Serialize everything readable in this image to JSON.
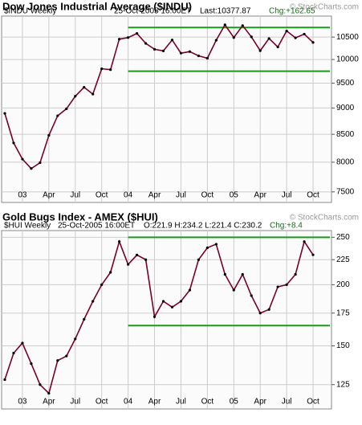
{
  "chart_data": [
    {
      "type": "line",
      "title": "Dow Jones Industrial Average ($INDU)",
      "watermark": "© StockCharts.com",
      "info": [
        "$INDU Weekly",
        "25-Oct-2005 16:00ET",
        "Last:10377.87",
        "Chg:+162.65"
      ],
      "categories": [
        null,
        null,
        "03",
        null,
        null,
        "Apr",
        null,
        null,
        "Jul",
        null,
        null,
        "Oct",
        null,
        null,
        "04",
        null,
        null,
        "Apr",
        null,
        null,
        "Jul",
        null,
        null,
        "Oct",
        null,
        null,
        "05",
        null,
        null,
        "Apr",
        null,
        null,
        "Jul",
        null,
        null,
        "Oct"
      ],
      "values": [
        8896,
        8342,
        8054,
        7891,
        7992,
        8480,
        8850,
        8985,
        9233,
        9415,
        9275,
        9801,
        9782,
        10453,
        10488,
        10583,
        10357,
        10225,
        10188,
        10435,
        10139,
        10173,
        10080,
        10027,
        10428,
        10783,
        10489,
        10766,
        10504,
        10193,
        10467,
        10275,
        10641,
        10482,
        10568,
        10378
      ],
      "color": "#7a0026",
      "log_scale": true,
      "grid": true,
      "ylim": [
        7330,
        10990
      ],
      "yticks": [
        7500,
        8000,
        8500,
        9000,
        9500,
        10000,
        10500
      ],
      "reference_lines": [
        10720,
        9750
      ],
      "reference_color": "#1a9a1a"
    },
    {
      "type": "line",
      "title": "Gold Bugs Index - AMEX ($HUI)",
      "watermark": "© StockCharts.com",
      "info": [
        "$HUI Weekly",
        "25-Oct-2005 16:00ET",
        "O:221.9 H:234.2 L:221.4 C:230.2",
        "Chg:+8.4"
      ],
      "categories": [
        null,
        null,
        "03",
        null,
        null,
        "Apr",
        null,
        null,
        "Jul",
        null,
        null,
        "Oct",
        null,
        null,
        "04",
        null,
        null,
        "Apr",
        null,
        null,
        "Jul",
        null,
        null,
        "Oct",
        null,
        null,
        "05",
        null,
        null,
        "Apr",
        null,
        null,
        "Jul",
        null,
        null,
        "Oct"
      ],
      "values": [
        128,
        145,
        152,
        138,
        125,
        120,
        140,
        143,
        155,
        170,
        185,
        200,
        212,
        245,
        220,
        230,
        225,
        172,
        185,
        180,
        185,
        195,
        225,
        238,
        242,
        210,
        195,
        210,
        190,
        175,
        178,
        198,
        200,
        210,
        245,
        230.2
      ],
      "color": "#7a0026",
      "log_scale": true,
      "grid": true,
      "ylim": [
        111.5,
        258
      ],
      "yticks": [
        125,
        150,
        175,
        200,
        225,
        250
      ],
      "reference_lines": [
        250,
        165
      ],
      "reference_color": "#1a9a1a"
    }
  ]
}
